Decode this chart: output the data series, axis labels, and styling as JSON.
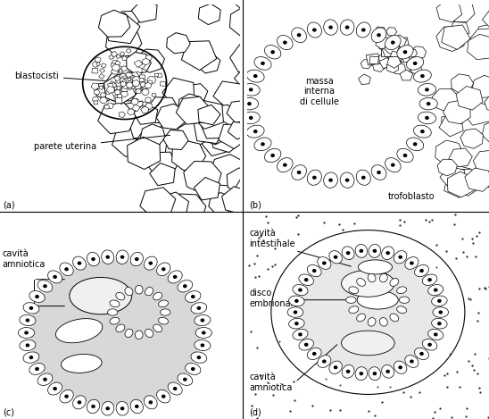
{
  "bg_color": "#ffffff",
  "line_color": "#000000",
  "figure_size": [
    5.48,
    4.69
  ],
  "dpi": 100,
  "font_size": 7,
  "panel_labels": {
    "a": "(a)",
    "b": "(b)",
    "c": "(c)",
    "d": "(d)"
  },
  "divider_color": "#000000",
  "cell_edge_color": "#000000",
  "cell_face_color": "#ffffff",
  "gray_fill": "#e0e0e0",
  "light_fill": "#f0f0f0",
  "dot_color": "#000000"
}
